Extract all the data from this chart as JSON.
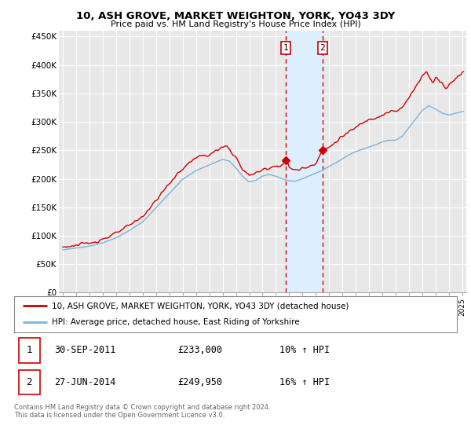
{
  "title": "10, ASH GROVE, MARKET WEIGHTON, YORK, YO43 3DY",
  "subtitle": "Price paid vs. HM Land Registry's House Price Index (HPI)",
  "background_color": "#ffffff",
  "plot_bg_color": "#e8e8e8",
  "grid_color": "#ffffff",
  "red_color": "#cc0000",
  "blue_color": "#7bb3d9",
  "shade_color": "#ddeeff",
  "sale1_x": 2011.75,
  "sale1_price": 233000,
  "sale2_x": 2014.5,
  "sale2_price": 249950,
  "legend_line1": "10, ASH GROVE, MARKET WEIGHTON, YORK, YO43 3DY (detached house)",
  "legend_line2": "HPI: Average price, detached house, East Riding of Yorkshire",
  "footer": "Contains HM Land Registry data © Crown copyright and database right 2024.\nThis data is licensed under the Open Government Licence v3.0.",
  "ylim": [
    0,
    460000
  ],
  "yticks": [
    0,
    50000,
    100000,
    150000,
    200000,
    250000,
    300000,
    350000,
    400000,
    450000
  ],
  "ytick_labels": [
    "£0",
    "£50K",
    "£100K",
    "£150K",
    "£200K",
    "£250K",
    "£300K",
    "£350K",
    "£400K",
    "£450K"
  ]
}
